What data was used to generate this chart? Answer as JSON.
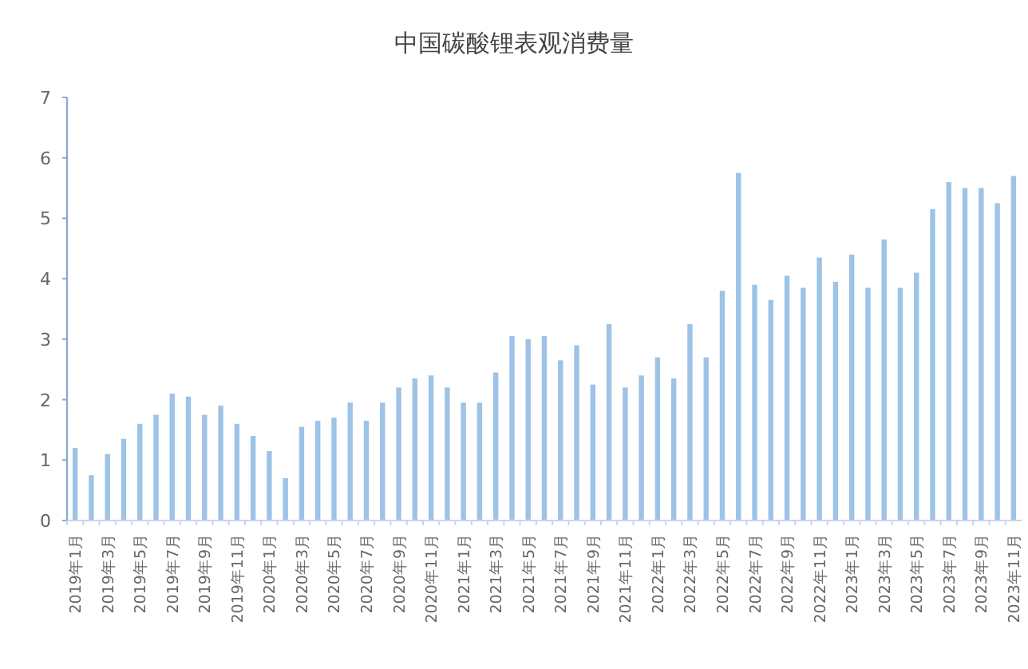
{
  "chart_data": {
    "type": "bar",
    "title": "中国碳酸锂表观消费量",
    "color": "#9dc3e6",
    "ylim": [
      0,
      7
    ],
    "yticks": [
      0,
      1,
      2,
      3,
      4,
      5,
      6,
      7
    ],
    "grid": false,
    "categories": [
      "2019年1月",
      null,
      "2019年3月",
      null,
      "2019年5月",
      null,
      "2019年7月",
      null,
      "2019年9月",
      null,
      "2019年11月",
      null,
      "2020年1月",
      null,
      "2020年3月",
      null,
      "2020年5月",
      null,
      "2020年7月",
      null,
      "2020年9月",
      null,
      "2020年11月",
      null,
      "2021年1月",
      null,
      "2021年3月",
      null,
      "2021年5月",
      null,
      "2021年7月",
      null,
      "2021年9月",
      null,
      "2021年11月",
      null,
      "2022年1月",
      null,
      "2022年3月",
      null,
      "2022年5月",
      null,
      "2022年7月",
      null,
      "2022年9月",
      null,
      "2022年11月",
      null,
      "2023年1月",
      null,
      "2023年3月",
      null,
      "2023年5月",
      null,
      "2023年7月",
      null,
      "2023年9月",
      null,
      "2023年11月"
    ],
    "values": [
      1.2,
      0.75,
      1.1,
      1.35,
      1.6,
      1.75,
      2.1,
      2.05,
      1.75,
      1.9,
      1.6,
      1.4,
      1.15,
      0.7,
      1.55,
      1.65,
      1.7,
      1.95,
      1.65,
      1.95,
      2.2,
      2.35,
      2.4,
      2.2,
      1.95,
      1.95,
      2.45,
      3.05,
      3.0,
      3.05,
      2.65,
      2.9,
      2.25,
      3.25,
      2.2,
      2.4,
      2.7,
      2.35,
      3.25,
      2.7,
      3.8,
      5.75,
      3.9,
      3.65,
      4.05,
      3.85,
      4.35,
      3.95,
      4.4,
      3.85,
      4.65,
      3.85,
      4.1,
      5.15,
      5.6,
      5.5,
      5.5,
      5.25,
      5.7
    ]
  }
}
